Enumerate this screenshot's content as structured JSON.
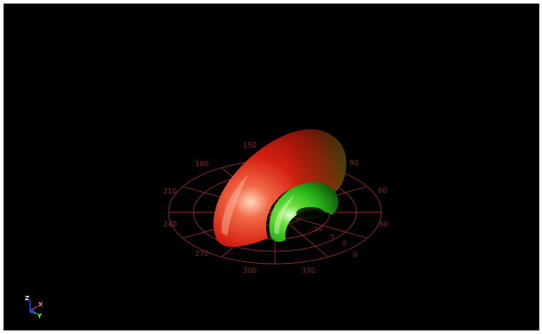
{
  "viewer": {
    "background_color": "#000000",
    "grid_color": "#8a2a2a"
  },
  "polar_grid": {
    "angle_labels": [
      "0",
      "30",
      "60",
      "90",
      "150",
      "180",
      "210",
      "240",
      "270",
      "300",
      "330"
    ],
    "radius_labels": [
      "-10",
      "-5",
      "0"
    ]
  },
  "pattern": {
    "main_lobe_color": "#d42010",
    "secondary_lobe_color": "#2ab81a"
  },
  "orientation_triad": {
    "axis_label_z": "Z",
    "axis_label_x": "X",
    "axis_label_y": "Y",
    "x_color": "#d02020",
    "y_color": "#20c020",
    "z_color": "#2040e0"
  }
}
